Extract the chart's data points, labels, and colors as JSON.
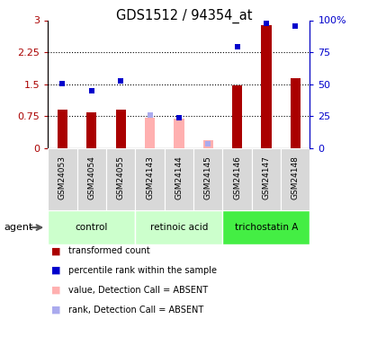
{
  "title": "GDS1512 / 94354_at",
  "samples": [
    "GSM24053",
    "GSM24054",
    "GSM24055",
    "GSM24143",
    "GSM24144",
    "GSM24145",
    "GSM24146",
    "GSM24147",
    "GSM24148"
  ],
  "red_bars": [
    0.9,
    0.85,
    0.9,
    null,
    null,
    null,
    1.48,
    2.88,
    1.65
  ],
  "pink_bars": [
    null,
    null,
    null,
    0.72,
    0.69,
    0.18,
    null,
    null,
    null
  ],
  "blue_squares_left": [
    1.52,
    1.35,
    1.57,
    null,
    0.72,
    null,
    2.38,
    2.92,
    2.87
  ],
  "light_blue_squares_left": [
    null,
    null,
    null,
    0.78,
    null,
    0.1,
    null,
    null,
    null
  ],
  "ylim_left": [
    0,
    3.0
  ],
  "ylim_right": [
    0,
    100
  ],
  "yticks_left": [
    0,
    0.75,
    1.5,
    2.25,
    3.0
  ],
  "ytick_labels_left": [
    "0",
    "0.75",
    "1.5",
    "2.25",
    "3"
  ],
  "yticks_right": [
    0,
    25,
    50,
    75,
    100
  ],
  "ytick_labels_right": [
    "0",
    "25",
    "50",
    "75",
    "100%"
  ],
  "hlines": [
    0.75,
    1.5,
    2.25
  ],
  "bar_width": 0.35,
  "red_color": "#aa0000",
  "pink_color": "#ffb0b0",
  "blue_color": "#0000cc",
  "light_blue_color": "#aaaaee",
  "group_info": [
    {
      "name": "control",
      "color": "#ccffcc",
      "start": 0,
      "end": 2
    },
    {
      "name": "retinoic acid",
      "color": "#ccffcc",
      "start": 3,
      "end": 5
    },
    {
      "name": "trichostatin A",
      "color": "#44ee44",
      "start": 6,
      "end": 8
    }
  ],
  "legend_items": [
    {
      "color": "#aa0000",
      "label": "transformed count"
    },
    {
      "color": "#0000cc",
      "label": "percentile rank within the sample"
    },
    {
      "color": "#ffb0b0",
      "label": "value, Detection Call = ABSENT"
    },
    {
      "color": "#aaaaee",
      "label": "rank, Detection Call = ABSENT"
    }
  ]
}
